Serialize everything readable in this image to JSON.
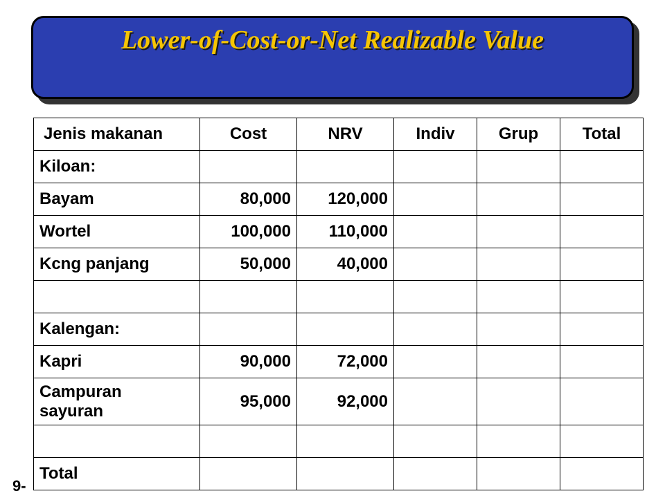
{
  "title": "Lower-of-Cost-or-Net Realizable Value",
  "footer": "9-",
  "table": {
    "columns": [
      "Jenis makanan",
      "Cost",
      "NRV",
      "Indiv",
      "Grup",
      "Total"
    ],
    "rows": [
      {
        "label": "Kiloan:",
        "cost": "",
        "nrv": "",
        "indiv": "",
        "grup": "",
        "total": ""
      },
      {
        "label": "Bayam",
        "cost": "80,000",
        "nrv": "120,000",
        "indiv": "",
        "grup": "",
        "total": ""
      },
      {
        "label": "Wortel",
        "cost": "100,000",
        "nrv": "110,000",
        "indiv": "",
        "grup": "",
        "total": ""
      },
      {
        "label": "Kcng panjang",
        "cost": "50,000",
        "nrv": "40,000",
        "indiv": "",
        "grup": "",
        "total": ""
      },
      {
        "label": "",
        "cost": "",
        "nrv": "",
        "indiv": "",
        "grup": "",
        "total": ""
      },
      {
        "label": "Kalengan:",
        "cost": "",
        "nrv": "",
        "indiv": "",
        "grup": "",
        "total": ""
      },
      {
        "label": "Kapri",
        "cost": "90,000",
        "nrv": "72,000",
        "indiv": "",
        "grup": "",
        "total": ""
      },
      {
        "label": "Campuran\nsayuran",
        "cost": "95,000",
        "nrv": "92,000",
        "indiv": "",
        "grup": "",
        "total": "",
        "multi": true
      },
      {
        "label": "",
        "cost": "",
        "nrv": "",
        "indiv": "",
        "grup": "",
        "total": ""
      },
      {
        "label": "Total",
        "cost": "",
        "nrv": "",
        "indiv": "",
        "grup": "",
        "total": ""
      }
    ]
  },
  "style": {
    "title_bg": "#2b3eb0",
    "title_fg": "#f6c504",
    "title_font": "Comic Sans MS",
    "title_fontsize_pt": 29,
    "cell_fontsize_pt": 18,
    "border_color": "#000000",
    "page_bg": "#ffffff"
  }
}
